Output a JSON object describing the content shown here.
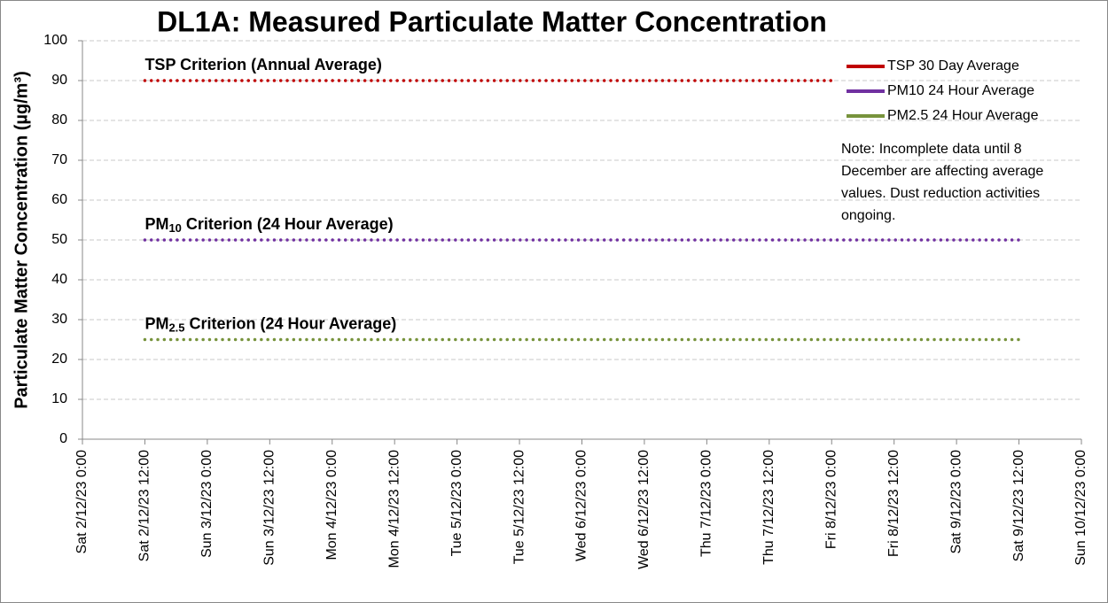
{
  "chart_data": {
    "type": "line",
    "title": "DL1A: Measured Particulate Matter Concentration",
    "y_label": "Particulate Matter Concentration (µg/m³)",
    "note": "Note: Incomplete data until 8 December are affecting average values. Dust reduction activities ongoing.",
    "categories": [
      "Sat 2/12/23 0:00",
      "Sat 2/12/23 12:00",
      "Sun 3/12/23 0:00",
      "Sun 3/12/23 12:00",
      "Mon 4/12/23 0:00",
      "Mon 4/12/23 12:00",
      "Tue 5/12/23 0:00",
      "Tue 5/12/23 12:00",
      "Wed 6/12/23 0:00",
      "Wed 6/12/23 12:00",
      "Thu 7/12/23 0:00",
      "Thu 7/12/23 12:00",
      "Fri 8/12/23 0:00",
      "Fri 8/12/23 12:00",
      "Sat 9/12/23 0:00",
      "Sat 9/12/23 12:00",
      "Sun 10/12/23 0:00"
    ],
    "series": [
      {
        "name": "TSP 30 Day Average",
        "color": "#c00000",
        "values": [
          null,
          null,
          null,
          null,
          null,
          null,
          null,
          null,
          null,
          null,
          null,
          null,
          null,
          null,
          null,
          null,
          null
        ]
      },
      {
        "name": "PM10 24 Hour Average",
        "color": "#7030a0",
        "values": [
          null,
          null,
          null,
          null,
          null,
          null,
          null,
          null,
          null,
          null,
          null,
          null,
          null,
          null,
          null,
          null,
          null
        ]
      },
      {
        "name": "PM2.5 24 Hour Average",
        "color": "#77933c",
        "values": [
          null,
          null,
          null,
          null,
          null,
          null,
          null,
          null,
          null,
          null,
          null,
          null,
          null,
          null,
          null,
          null,
          null
        ]
      }
    ],
    "criteria": [
      {
        "label": "TSP Criterion (Annual Average)",
        "color": "#c00000",
        "values": [
          null,
          90,
          90,
          90,
          90,
          90,
          90,
          90,
          90,
          90,
          90,
          90,
          90,
          null,
          null,
          null,
          null
        ]
      },
      {
        "prefix": "PM",
        "subscript": "10",
        "label": " Criterion (24 Hour Average)",
        "color": "#7030a0",
        "values": [
          null,
          50,
          50,
          50,
          50,
          50,
          50,
          50,
          50,
          50,
          50,
          50,
          50,
          50,
          50,
          50,
          null
        ]
      },
      {
        "prefix": "PM",
        "subscript": "2.5",
        "label": " Criterion (24 Hour Average)",
        "color": "#77933c",
        "values": [
          null,
          25,
          25,
          25,
          25,
          25,
          25,
          25,
          25,
          25,
          25,
          25,
          25,
          25,
          25,
          25,
          null
        ]
      }
    ],
    "ylim": [
      0,
      100
    ],
    "yticks": [
      0,
      10,
      20,
      30,
      40,
      50,
      60,
      70,
      80,
      90,
      100
    ],
    "grid": true,
    "legend": "upper right"
  }
}
